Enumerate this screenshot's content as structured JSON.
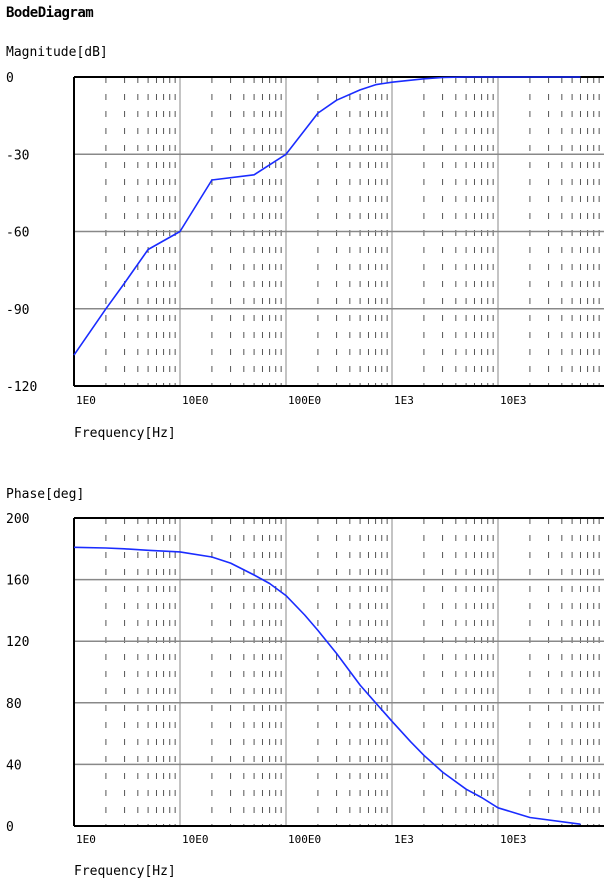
{
  "title": "BodeDiagram",
  "colors": {
    "curve": "#1a2cff",
    "grid": "#888888",
    "minor": "#555555",
    "axis": "#000000"
  },
  "chart_data": [
    {
      "type": "line",
      "title": "",
      "ylabel": "Magnitude[dB]",
      "xlabel": "Frequency[Hz]",
      "x_scale": "log",
      "xlim": [
        1,
        60000
      ],
      "ylim": [
        -120,
        0
      ],
      "yticks": [
        0,
        -30,
        -60,
        -90,
        -120
      ],
      "ytick_labels": [
        "0",
        "-30",
        "-60",
        "-90",
        "-120"
      ],
      "xticks": [
        1,
        10,
        100,
        1000,
        10000
      ],
      "xtick_labels": [
        "1E0",
        "10E0",
        "100E0",
        "1E3",
        "10E3"
      ],
      "grid": true,
      "series": [
        {
          "name": "",
          "x": [
            1,
            2,
            3,
            5,
            10,
            20,
            50,
            100,
            200,
            300,
            500,
            700,
            1000,
            2000,
            3000,
            5000,
            10000,
            60000
          ],
          "y": [
            -108,
            -90,
            -80,
            -67,
            -60,
            -40,
            -38,
            -30,
            -14,
            -9,
            -5,
            -3,
            -2,
            -0.7,
            -0.2,
            0,
            0,
            0
          ]
        }
      ]
    },
    {
      "type": "line",
      "title": "",
      "ylabel": "Phase[deg]",
      "xlabel": "Frequency[Hz]",
      "x_scale": "log",
      "xlim": [
        1,
        60000
      ],
      "ylim": [
        0,
        200
      ],
      "yticks": [
        200,
        160,
        120,
        80,
        40,
        0
      ],
      "ytick_labels": [
        "200",
        "160",
        "120",
        "80",
        "40",
        "0"
      ],
      "xticks": [
        1,
        10,
        100,
        1000,
        10000
      ],
      "xtick_labels": [
        "1E0",
        "10E0",
        "100E0",
        "1E3",
        "10E3"
      ],
      "grid": true,
      "series": [
        {
          "name": "",
          "x": [
            1,
            2,
            3,
            5,
            10,
            20,
            30,
            50,
            70,
            100,
            150,
            200,
            300,
            500,
            700,
            1000,
            1500,
            2000,
            3000,
            5000,
            7000,
            10000,
            20000,
            60000
          ],
          "y": [
            181,
            180.5,
            180,
            179,
            178,
            174.7,
            170.7,
            163,
            157.5,
            149.6,
            137,
            127,
            112,
            91.5,
            80,
            68,
            54.7,
            45.9,
            35,
            23.9,
            18.5,
            11.8,
            5.5,
            1.2
          ]
        }
      ]
    }
  ]
}
